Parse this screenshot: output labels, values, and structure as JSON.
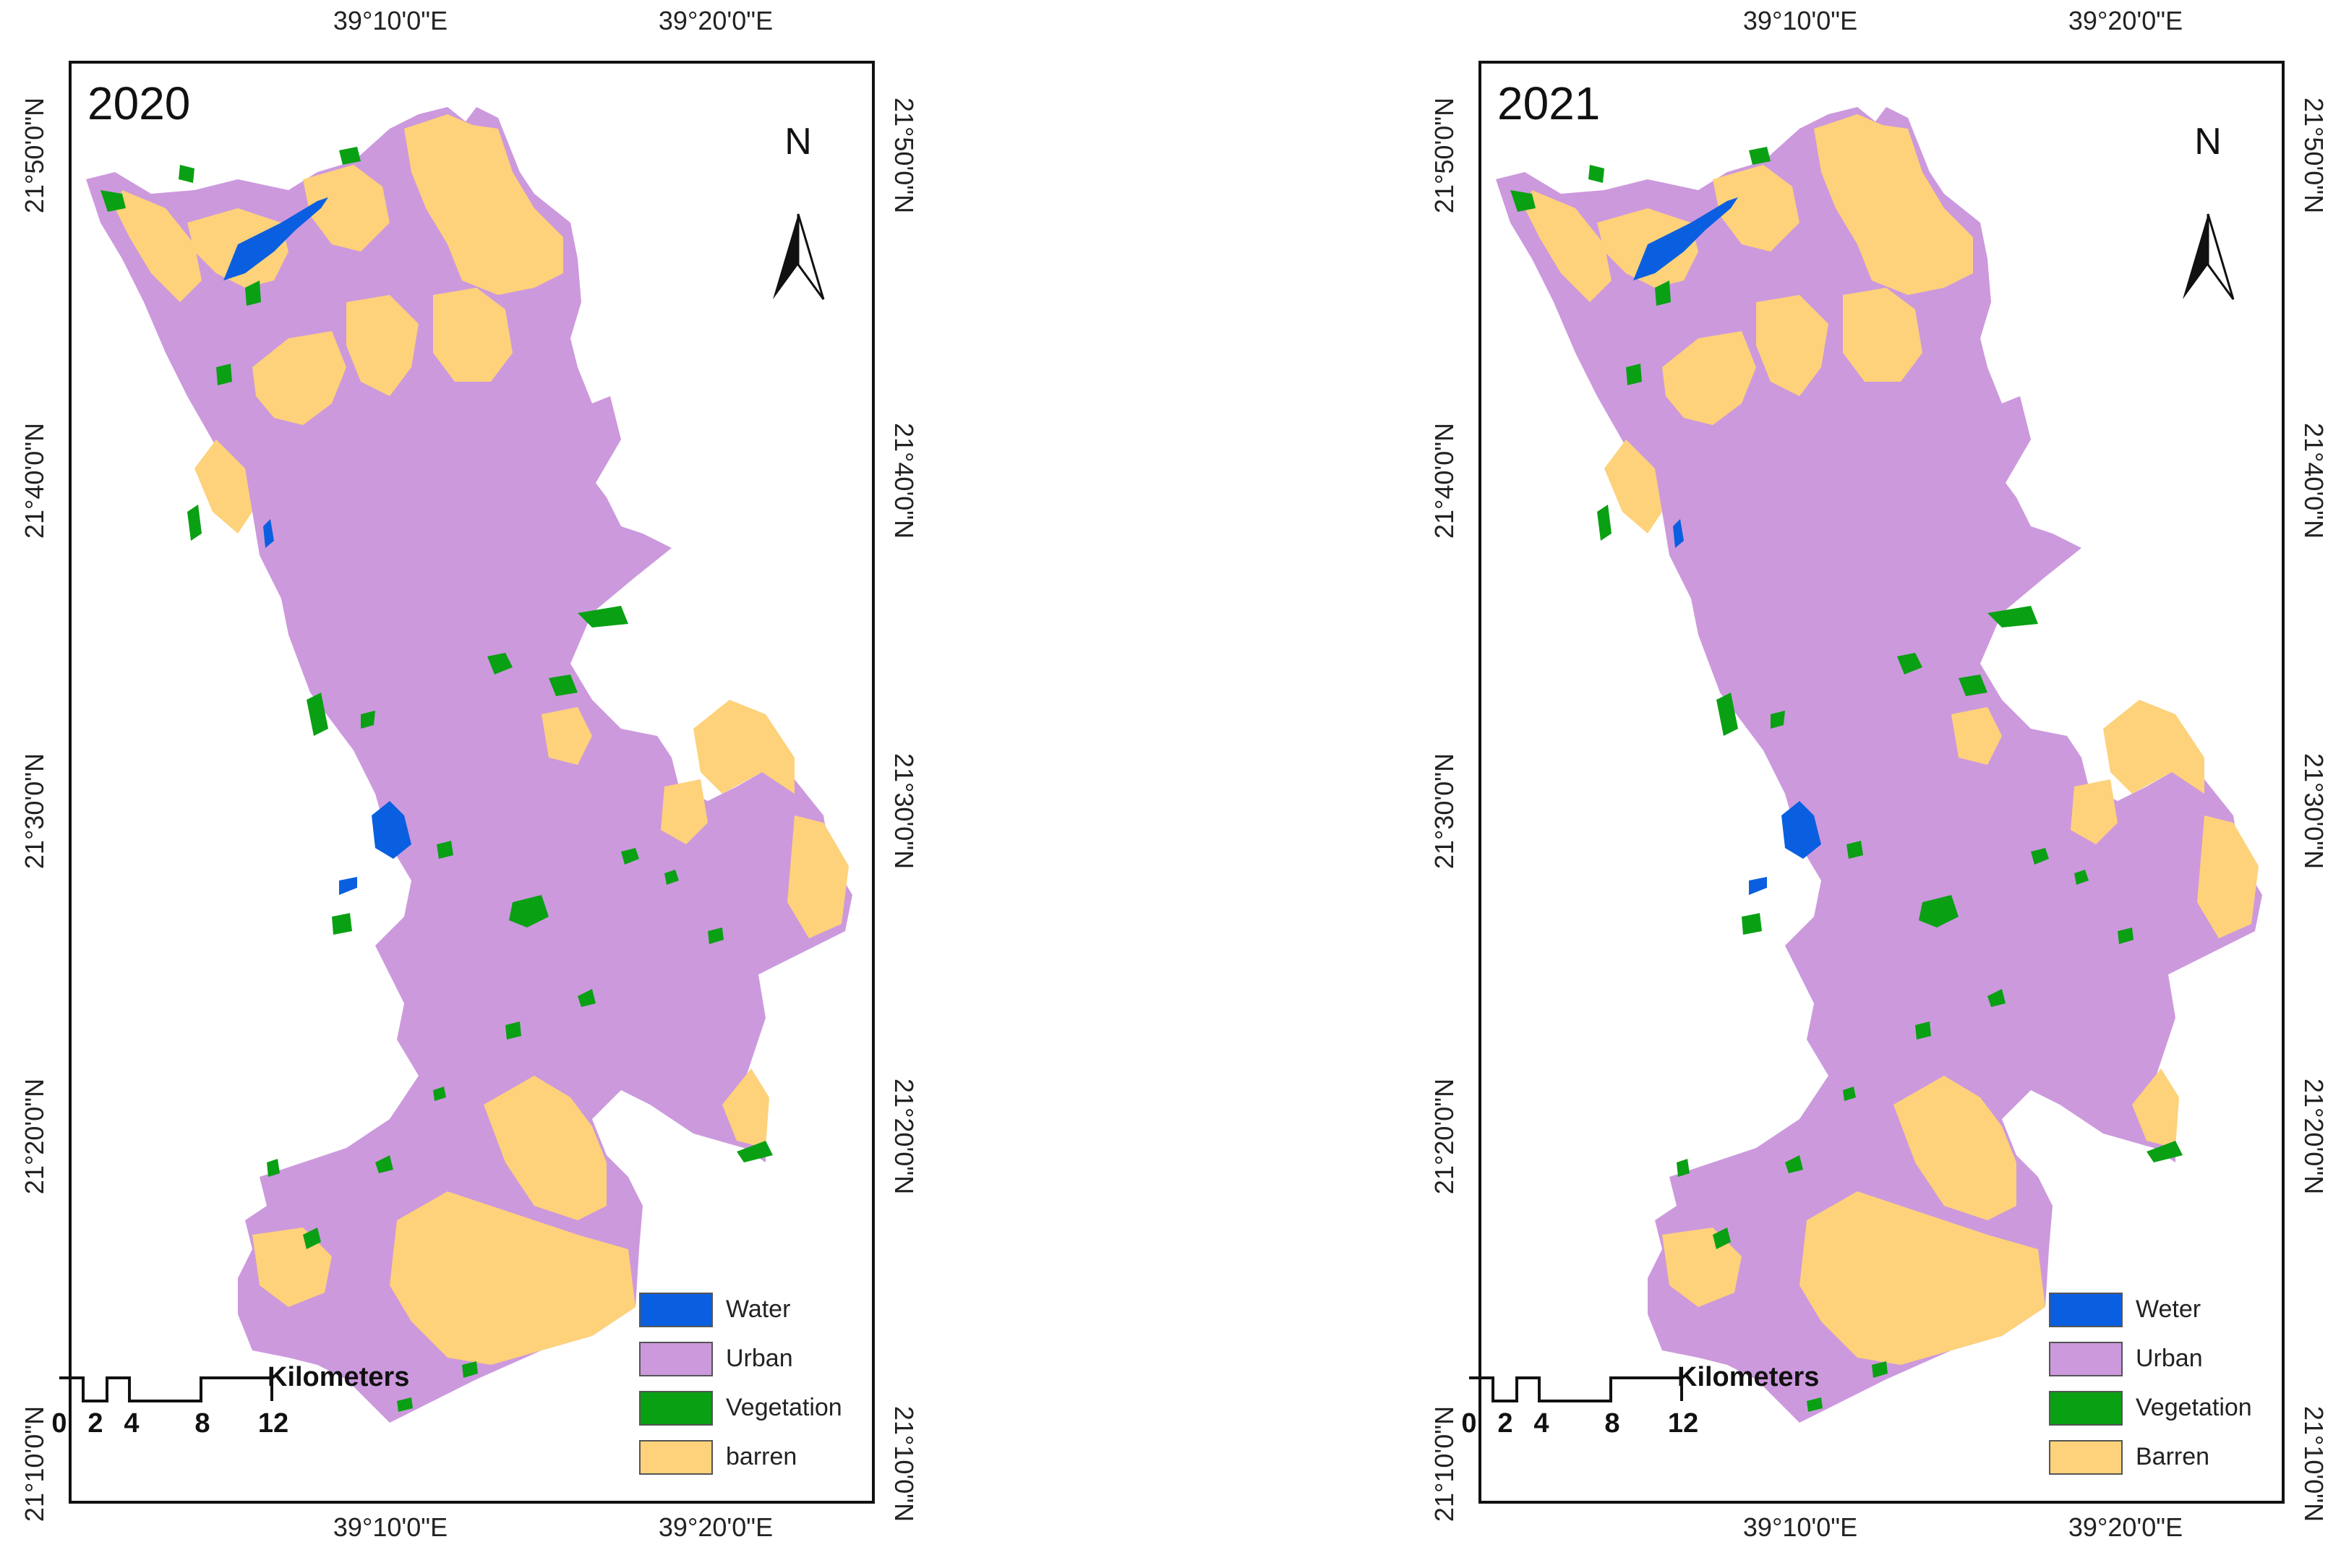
{
  "colors": {
    "water": "#0a5fe0",
    "urban": "#cc99dd",
    "vegetation": "#0aa014",
    "barren": "#fdd27a"
  },
  "axes": {
    "lon_labels": [
      "39°10'0\"E",
      "39°20'0\"E"
    ],
    "lat_labels": [
      "21°50'0\"N",
      "21°40'0\"N",
      "21°30'0\"N",
      "21°20'0\"N",
      "21°10'0\"N"
    ]
  },
  "north_arrow": {
    "letter": "N"
  },
  "scale_bar": {
    "unit": "Kilometers",
    "numbers": [
      "0",
      "2",
      "4",
      "8",
      "12"
    ]
  },
  "panels": [
    {
      "year": "2020",
      "legend": [
        {
          "label": "Water",
          "icon": "water-swatch"
        },
        {
          "label": "Urban",
          "icon": "urban-swatch"
        },
        {
          "label": "Vegetation",
          "icon": "vegetation-swatch"
        },
        {
          "label": "barren",
          "icon": "barren-swatch"
        }
      ]
    },
    {
      "year": "2021",
      "legend": [
        {
          "label": "Weter",
          "icon": "water-swatch"
        },
        {
          "label": "Urban",
          "icon": "urban-swatch"
        },
        {
          "label": "Vegetation",
          "icon": "vegetation-swatch"
        },
        {
          "label": "Barren",
          "icon": "barren-swatch"
        }
      ]
    }
  ]
}
